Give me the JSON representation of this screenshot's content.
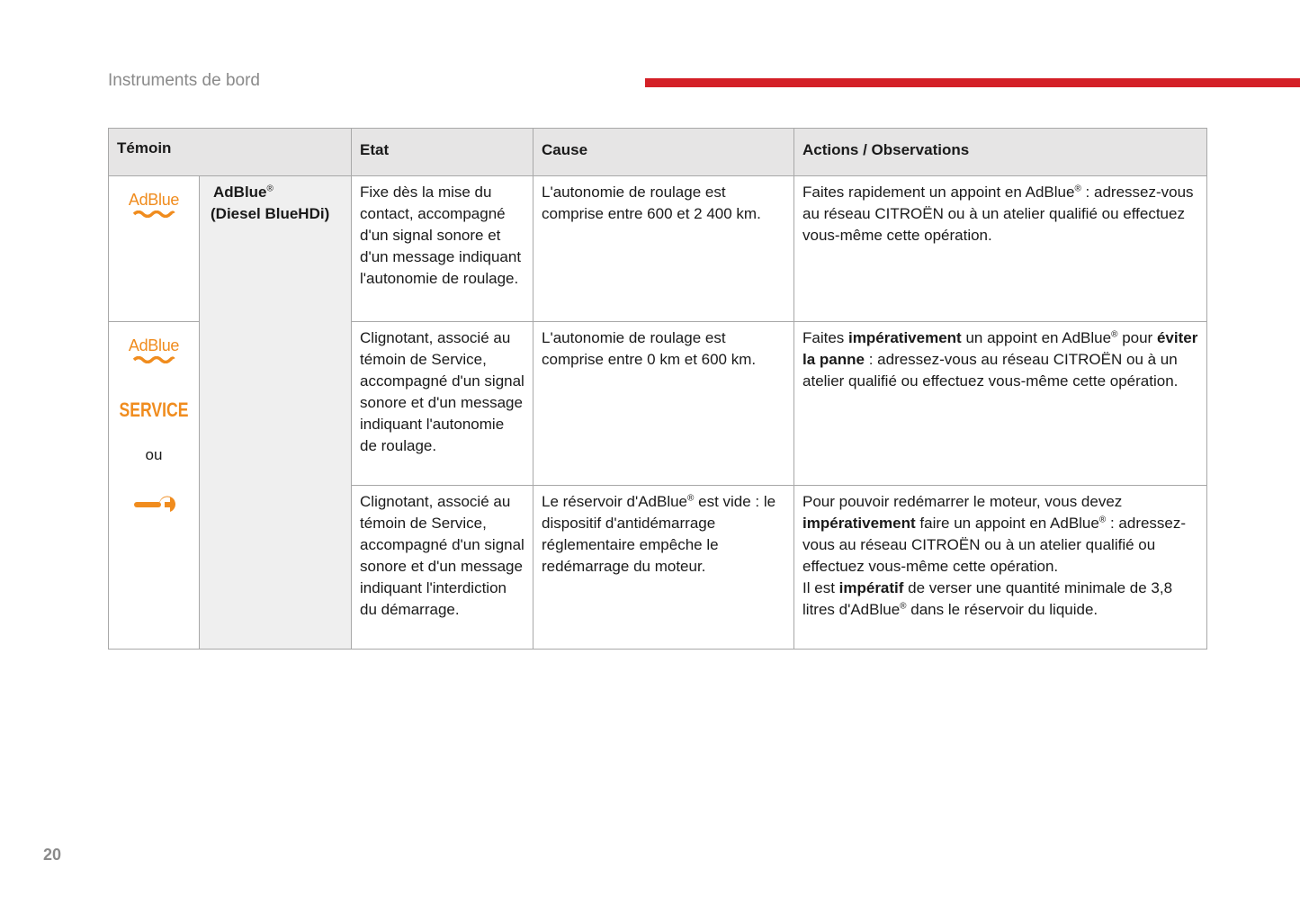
{
  "header": {
    "section": "Instruments de bord",
    "accent_color": "#d42027"
  },
  "page_number": "20",
  "table": {
    "headers": [
      "Témoin",
      "Etat",
      "Cause",
      "Actions / Observations"
    ],
    "indicator_name": {
      "line1": "AdBlue",
      "reg": "®",
      "line2": "(Diesel BlueHDi)"
    },
    "icons": {
      "adblue_label": "AdBlue",
      "service_label": "SERVICE",
      "or_label": "ou",
      "icon_color": "#f08c1e"
    },
    "rows": [
      {
        "etat": "Fixe dès la mise du contact, accompagné d'un signal sonore et d'un message indiquant l'autonomie de roulage.",
        "cause": "L'autonomie de roulage est comprise entre 600 et 2 400 km.",
        "actions": [
          "Faites rapidement un appoint en AdBlue",
          "®",
          " : adressez-vous au réseau CITROËN ou à un atelier qualifié ou effectuez vous-même cette opération."
        ]
      },
      {
        "etat": "Clignotant, associé au témoin de Service, accompagné d'un signal sonore et d'un message indiquant l'autonomie de roulage.",
        "cause": "L'autonomie de roulage est comprise entre 0 km et 600 km.",
        "actions": [
          "Faites ",
          "impérativement",
          " un appoint en AdBlue",
          "®",
          " pour ",
          "éviter la panne",
          " : adressez-vous au réseau CITROËN ou à un atelier qualifié ou effectuez vous-même cette opération."
        ]
      },
      {
        "etat": "Clignotant, associé au témoin de Service, accompagné d'un signal sonore et d'un message indiquant l'interdiction du démarrage.",
        "cause": [
          "Le réservoir d'AdBlue",
          "®",
          " est vide : le dispositif d'antidémarrage réglementaire empêche le redémarrage du moteur."
        ],
        "actions": [
          "Pour pouvoir redémarrer le moteur, vous devez ",
          "impérativement",
          " faire un appoint en AdBlue",
          "®",
          " : adressez-vous au réseau CITROËN ou à un atelier qualifié ou effectuez vous-même cette opération.",
          "Il est ",
          "impératif",
          " de verser une quantité minimale de 3,8 litres d'AdBlue",
          "®",
          " dans le réservoir du liquide."
        ]
      }
    ]
  }
}
